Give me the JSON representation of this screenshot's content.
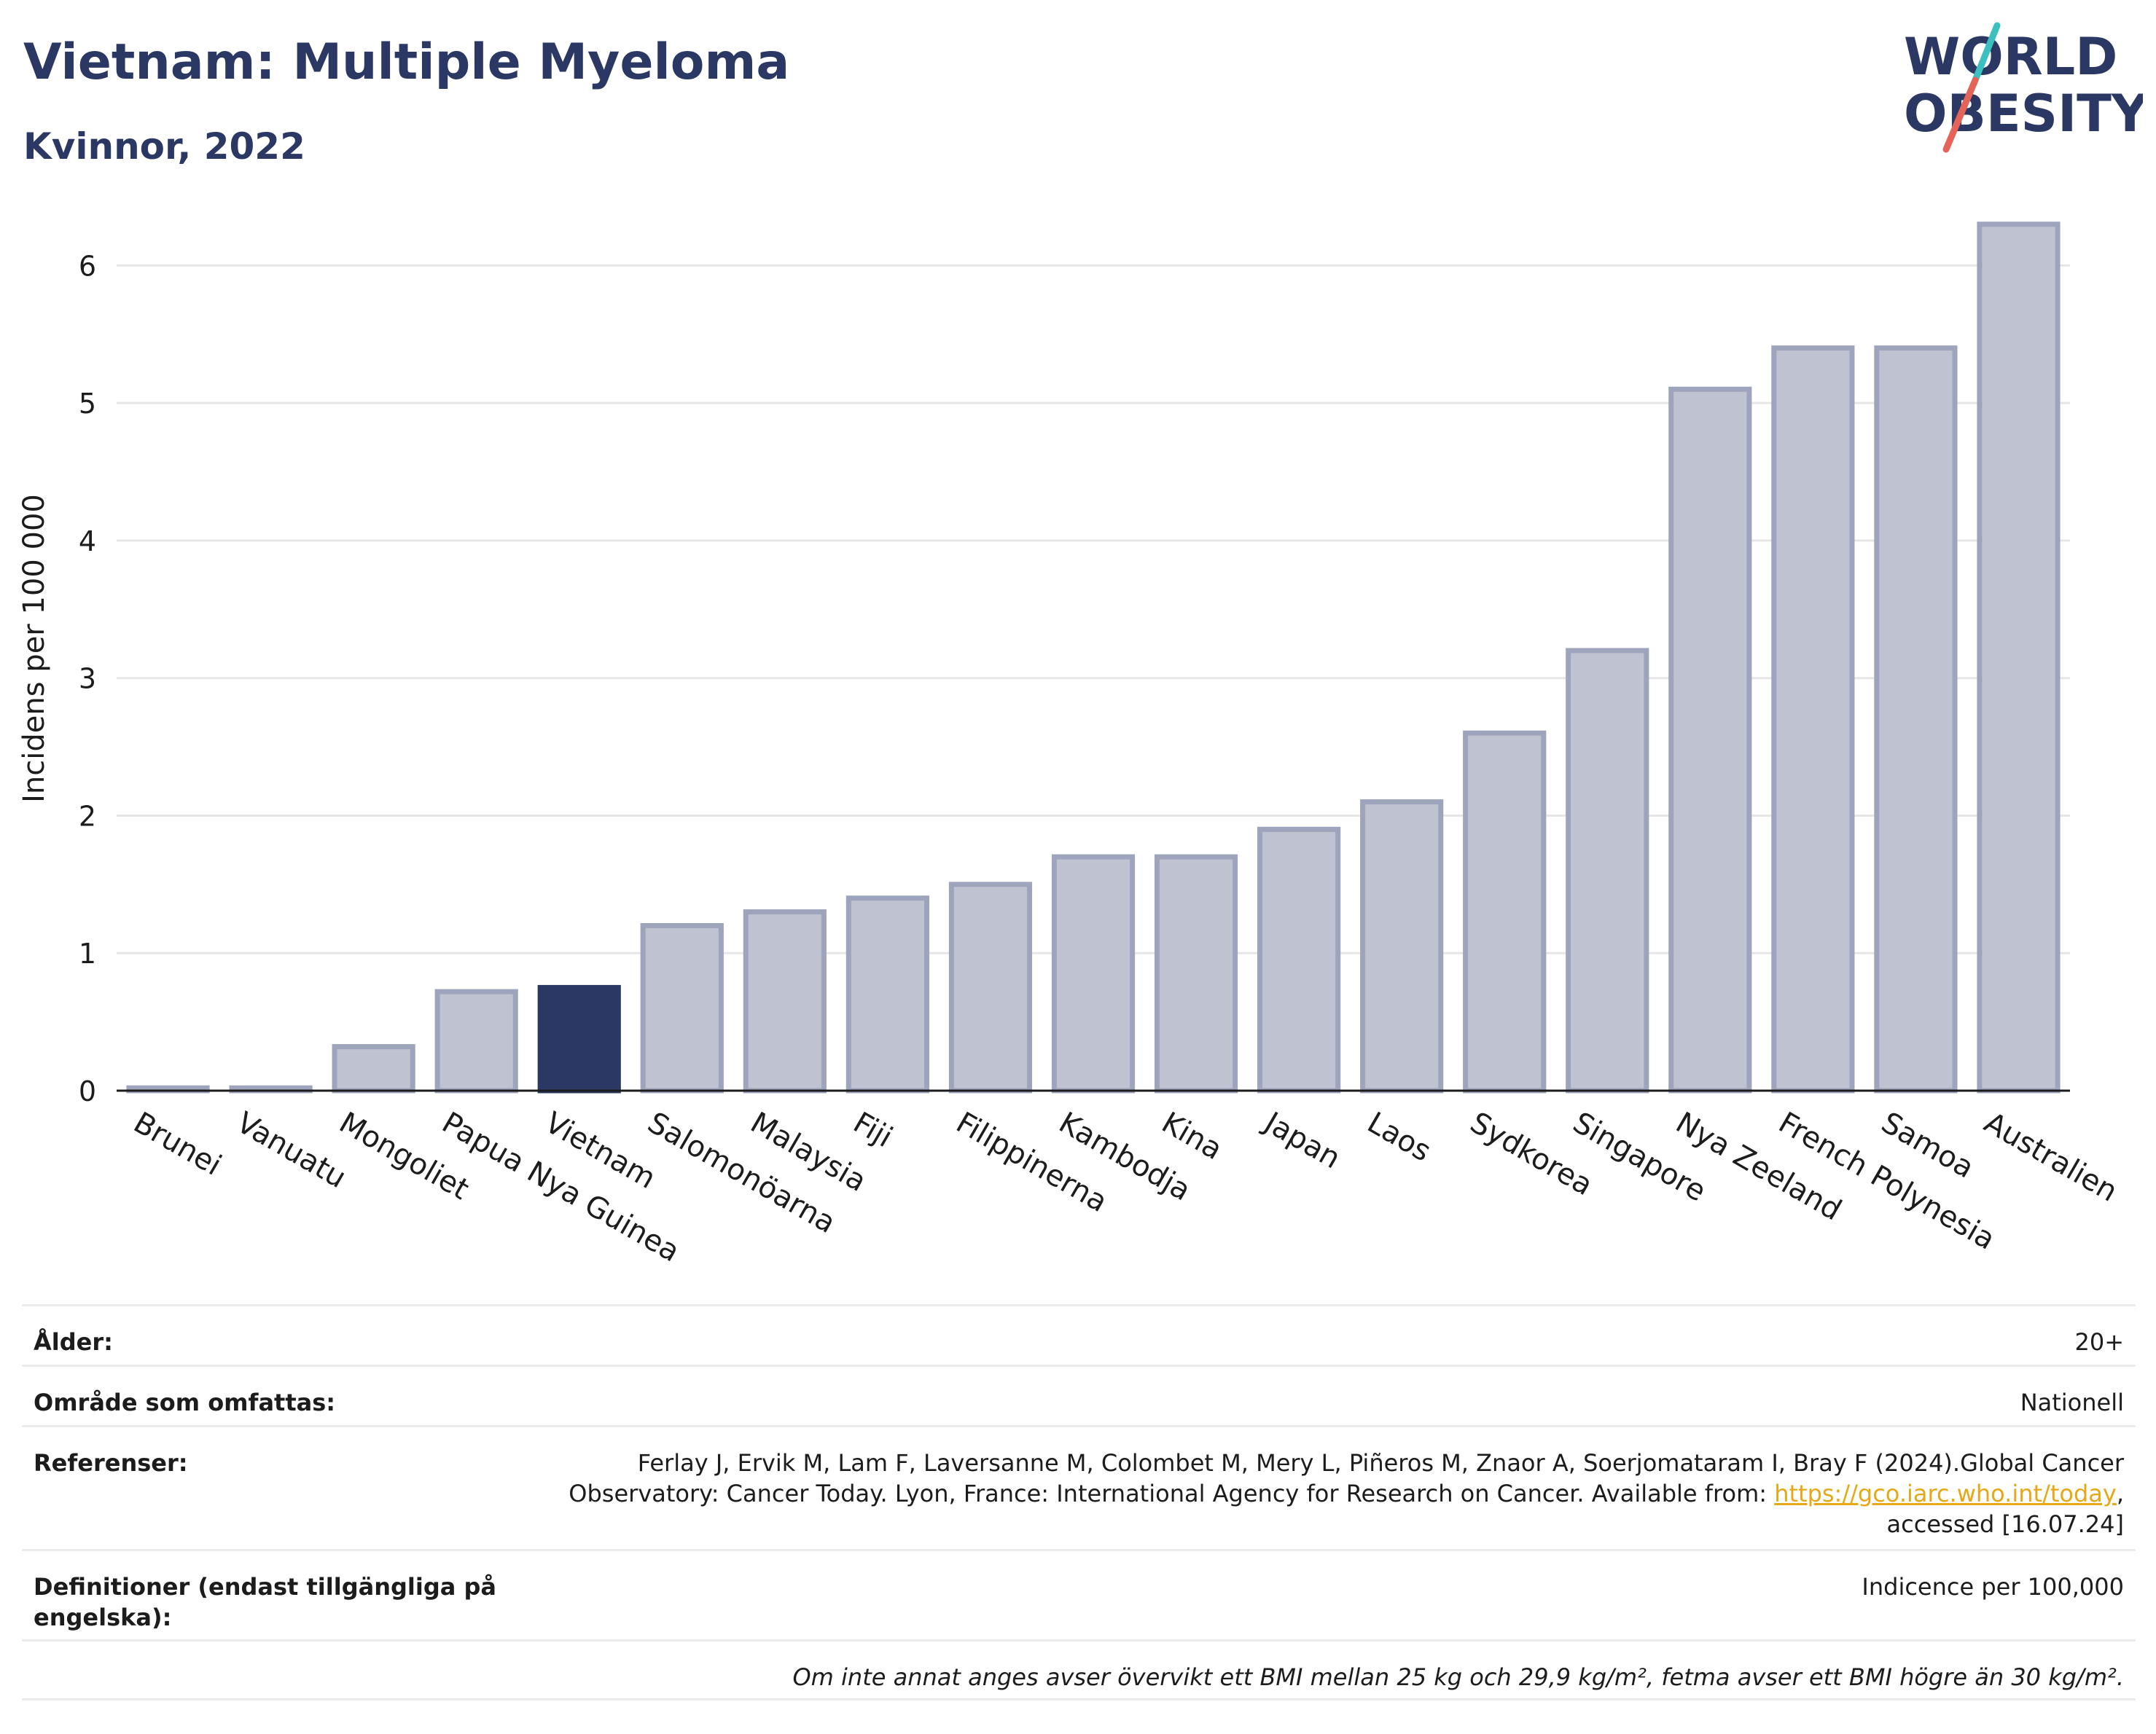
{
  "header": {
    "title": "Vietnam: Multiple Myeloma",
    "subtitle": "Kvinnor, 2022"
  },
  "logo": {
    "line1": "WORLD",
    "line2": "OBESITY",
    "text_color": "#2b3864",
    "slash_colors": [
      "#3bbfbf",
      "#e5645a"
    ]
  },
  "chart_data": {
    "type": "bar",
    "ylabel": "Incidens per 100 000",
    "xlabel": "",
    "ylim": [
      0,
      6.5
    ],
    "yticks": [
      0,
      1,
      2,
      3,
      4,
      5,
      6
    ],
    "grid": true,
    "highlight": "Vietnam",
    "colors": {
      "bar": "#bfc3d1",
      "bar_edge": "#9ea4bc",
      "highlight": "#2b3864"
    },
    "categories": [
      "Brunei",
      "Vanuatu",
      "Mongoliet",
      "Papua Nya Guinea",
      "Vietnam",
      "Salomonöarna",
      "Malaysia",
      "Fiji",
      "Filippinerna",
      "Kambodja",
      "Kina",
      "Japan",
      "Laos",
      "Sydkorea",
      "Singapore",
      "Nya Zeeland",
      "French Polynesia",
      "Samoa",
      "Australien"
    ],
    "values": [
      0.02,
      0.02,
      0.32,
      0.72,
      0.75,
      1.2,
      1.3,
      1.4,
      1.5,
      1.7,
      1.7,
      1.9,
      2.1,
      2.6,
      3.2,
      5.1,
      5.4,
      5.4,
      6.3
    ]
  },
  "info": {
    "age_label": "Ålder:",
    "age_value": "20+",
    "area_label": "Område som omfattas:",
    "area_value": "Nationell",
    "ref_label": "Referenser:",
    "ref_text_1": "Ferlay J, Ervik M, Lam F, Laversanne M, Colombet M, Mery L, Piñeros M, Znaor A, Soerjomataram I, Bray F (2024).Global Cancer Observatory: Cancer Today. Lyon, France: International Agency for Research on Cancer. Available from: ",
    "ref_link": "https://gco.iarc.who.int/today",
    "ref_text_2": ", accessed [16.07.24]",
    "def_label": "Definitioner (endast tillgängliga på engelska):",
    "def_value": "Indicence per 100,000",
    "note": "Om inte annat anges avser övervikt ett BMI mellan 25 kg och 29,9 kg/m², fetma avser ett BMI högre än 30 kg/m²."
  }
}
